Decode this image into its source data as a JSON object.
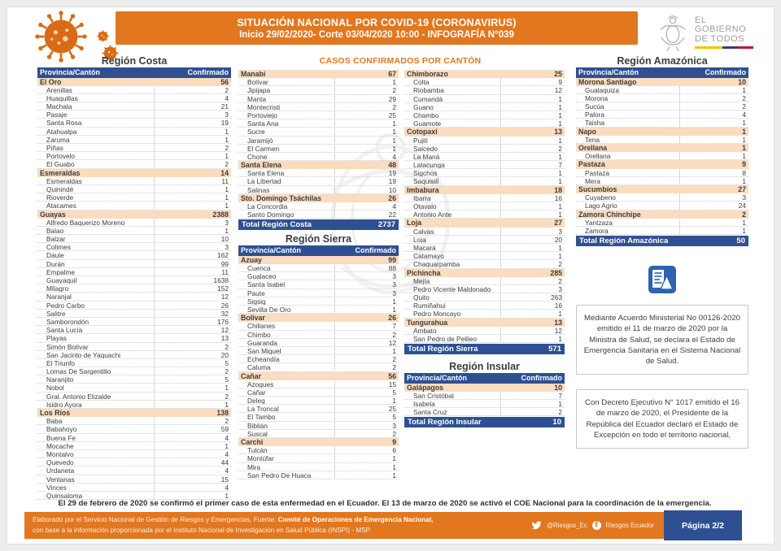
{
  "header": {
    "title_line1": "SITUACIÓN NACIONAL POR  COVID-19 (CORONAVIRUS)",
    "title_line2": "Inicio 29/02/2020- Corte 03/04/2020 10:00  - INFOGRAFÍA N°039",
    "logo_line1": "EL",
    "logo_line2": "GOBIERNO",
    "logo_line3": "DE TODOS"
  },
  "casos_header": "CASOS CONFIRMADOS POR CANTÓN",
  "col_header": {
    "province": "Provincia/Cantón",
    "confirmed": "Confirmado"
  },
  "costa": {
    "title": "Región Costa",
    "left_provinces": [
      {
        "name": "El Oro",
        "value": 56,
        "cantons": [
          [
            "Arenillas",
            2
          ],
          [
            "Huaquillas",
            4
          ],
          [
            "Machala",
            21
          ],
          [
            "Pasaje",
            3
          ],
          [
            "Santa Rosa",
            19
          ],
          [
            "Atahualpa",
            1
          ],
          [
            "Zaruma",
            1
          ],
          [
            "Piñas",
            2
          ],
          [
            "Portovelo",
            1
          ],
          [
            "El Guabo",
            2
          ]
        ]
      },
      {
        "name": "Esmeraldas",
        "value": 14,
        "cantons": [
          [
            "Esmeraldas",
            11
          ],
          [
            "Quinindé",
            1
          ],
          [
            "Rioverde",
            1
          ],
          [
            "Atacames",
            1
          ]
        ]
      },
      {
        "name": "Guayas",
        "value": 2388,
        "cantons": [
          [
            "Alfredo Baquerizo Moreno",
            3
          ],
          [
            "Balao",
            1
          ],
          [
            "Balzar",
            10
          ],
          [
            "Colimes",
            3
          ],
          [
            "Daule",
            162
          ],
          [
            "Durán",
            99
          ],
          [
            "Empalme",
            11
          ],
          [
            "Guayaquil",
            1638
          ],
          [
            "Milagro",
            152
          ],
          [
            "Naranjal",
            12
          ],
          [
            "Pedro Carbo",
            26
          ],
          [
            "Salitre",
            32
          ],
          [
            "Samborondón",
            176
          ],
          [
            "Santa Lucía",
            12
          ],
          [
            "Playas",
            13
          ],
          [
            "Simón Bolívar",
            2
          ],
          [
            "San Jacinto de Yaquachi",
            20
          ],
          [
            "El Triunfo",
            5
          ],
          [
            "Lomas De Sargentillo",
            2
          ],
          [
            "Naranjito",
            5
          ],
          [
            "Nobol",
            1
          ],
          [
            "Gral. Antonio Elizalde",
            2
          ],
          [
            "Isidro Ayora",
            1
          ]
        ]
      },
      {
        "name": "Los Ríos",
        "value": 138,
        "cantons": [
          [
            "Baba",
            2
          ],
          [
            "Babahoyo",
            59
          ],
          [
            "Buena Fe",
            4
          ],
          [
            "Mocache",
            1
          ],
          [
            "Montalvo",
            4
          ],
          [
            "Quevedo",
            44
          ],
          [
            "Urdaneta",
            4
          ],
          [
            "Ventanas",
            15
          ],
          [
            "Vinces",
            4
          ],
          [
            "Quinsaloma",
            1
          ]
        ]
      }
    ],
    "mid_provinces": [
      {
        "name": "Manabí",
        "value": 67,
        "cantons": [
          [
            "Bolívar",
            1
          ],
          [
            "Jipijapa",
            2
          ],
          [
            "Manta",
            29
          ],
          [
            "Montecristi",
            2
          ],
          [
            "Portoviejo",
            25
          ],
          [
            "Santa Ana",
            1
          ],
          [
            "Sucre",
            1
          ],
          [
            "Jaramijó",
            1
          ],
          [
            "El Carmen",
            1
          ],
          [
            "Chone",
            4
          ]
        ]
      },
      {
        "name": "Santa Elena",
        "value": 48,
        "cantons": [
          [
            "Santa Elena",
            19
          ],
          [
            "La Libertad",
            19
          ],
          [
            "Salinas",
            10
          ]
        ]
      },
      {
        "name": "Sto. Domingo  Tsáchilas",
        "value": 26,
        "cantons": [
          [
            "La Concordia",
            4
          ],
          [
            "Santo Domingo",
            22
          ]
        ]
      }
    ],
    "total_label": "Total Región Costa",
    "total_value": "2737"
  },
  "sierra": {
    "title": "Región Sierra",
    "mid_provinces": [
      {
        "name": "Azuay",
        "value": 99,
        "cantons": [
          [
            "Cuenca",
            88
          ],
          [
            "Gualaceo",
            3
          ],
          [
            "Santa Isabel",
            3
          ],
          [
            "Paute",
            3
          ],
          [
            "Sigsig",
            1
          ],
          [
            "Sevilla De Oro",
            1
          ]
        ]
      },
      {
        "name": "Bolívar",
        "value": 26,
        "cantons": [
          [
            "Chillanes",
            7
          ],
          [
            "Chimbo",
            2
          ],
          [
            "Guaranda",
            12
          ],
          [
            "San Miguel",
            1
          ],
          [
            "Echeandía",
            2
          ],
          [
            "Caluma",
            2
          ]
        ]
      },
      {
        "name": "Cañar",
        "value": 56,
        "cantons": [
          [
            "Azogues",
            15
          ],
          [
            "Cañar",
            5
          ],
          [
            "Deleg",
            1
          ],
          [
            "La Troncal",
            25
          ],
          [
            "El Tambo",
            5
          ],
          [
            "Biblián",
            3
          ],
          [
            "Suscal",
            2
          ]
        ]
      },
      {
        "name": "Carchi",
        "value": 9,
        "cantons": [
          [
            "Tulcán",
            6
          ],
          [
            "Montúfar",
            1
          ],
          [
            "Mira",
            1
          ],
          [
            "San Pedro De Huaca",
            1
          ]
        ]
      }
    ],
    "right_provinces": [
      {
        "name": "Chimborazo",
        "value": 25,
        "cantons": [
          [
            "Colta",
            9
          ],
          [
            "Riobamba",
            12
          ],
          [
            "Cumandá",
            1
          ],
          [
            "Guano",
            1
          ],
          [
            "Chambo",
            1
          ],
          [
            "Guamote",
            1
          ]
        ]
      },
      {
        "name": "Cotopaxi",
        "value": 13,
        "cantons": [
          [
            "Pujilí",
            1
          ],
          [
            "Salcedo",
            2
          ],
          [
            "La Maná",
            1
          ],
          [
            "Latacunga",
            7
          ],
          [
            "Sigchos",
            1
          ],
          [
            "Saquisilí",
            1
          ]
        ]
      },
      {
        "name": "Imbabura",
        "value": 18,
        "cantons": [
          [
            "Ibarra",
            16
          ],
          [
            "Otavalo",
            1
          ],
          [
            "Antonio Ante",
            1
          ]
        ]
      },
      {
        "name": "Loja",
        "value": 27,
        "cantons": [
          [
            "Calvas",
            3
          ],
          [
            "Loja",
            20
          ],
          [
            "Macará",
            1
          ],
          [
            "Catamayo",
            1
          ],
          [
            "Chaquarpamba",
            2
          ]
        ]
      },
      {
        "name": "Pichincha",
        "value": 285,
        "cantons": [
          [
            "Mejía",
            2
          ],
          [
            "Pedro Vicente Maldonado",
            3
          ],
          [
            "Quito",
            263
          ],
          [
            "Rumiñahui",
            16
          ],
          [
            "Pedro Moncayo",
            1
          ]
        ]
      },
      {
        "name": "Tungurahua",
        "value": 13,
        "cantons": [
          [
            "Ambato",
            12
          ],
          [
            "San Pedro de Pelileo",
            1
          ]
        ]
      }
    ],
    "total_label": "Total Región Sierra",
    "total_value": "571"
  },
  "insular": {
    "title": "Región Insular",
    "provinces": [
      {
        "name": "Galápagos",
        "value": 10,
        "cantons": [
          [
            "San Cristóbal",
            7
          ],
          [
            "Isabela",
            1
          ],
          [
            "Santa Cruz",
            2
          ]
        ]
      }
    ],
    "total_label": "Total Región Insular",
    "total_value": "10"
  },
  "amazonica": {
    "title": "Región Amazónica",
    "provinces": [
      {
        "name": "Morona Santiago",
        "value": 10,
        "cantons": [
          [
            "Gualaquiza",
            1
          ],
          [
            "Morona",
            2
          ],
          [
            "Sucúa",
            2
          ],
          [
            "Palora",
            4
          ],
          [
            "Taisha",
            1
          ]
        ]
      },
      {
        "name": "Napo",
        "value": 1,
        "cantons": [
          [
            "Tena",
            1
          ]
        ]
      },
      {
        "name": "Orellana",
        "value": 1,
        "cantons": [
          [
            "Orellana",
            1
          ]
        ]
      },
      {
        "name": "Pastaza",
        "value": 9,
        "cantons": [
          [
            "Pastaza",
            8
          ],
          [
            "Mera",
            1
          ]
        ]
      },
      {
        "name": "Sucumbíos",
        "value": 27,
        "cantons": [
          [
            "Cuyabeno",
            3
          ],
          [
            "Lago Agrio",
            24
          ]
        ]
      },
      {
        "name": "Zamora Chinchipe",
        "value": 2,
        "cantons": [
          [
            "Yantzaza",
            1
          ],
          [
            "Zamora",
            1
          ]
        ]
      }
    ],
    "total_label": "Total Región Amazónica",
    "total_value": "50"
  },
  "notes": {
    "note1": "Mediante Acuerdo Ministerial No 00126-2020 emitido el 11 de marzo de 2020 por la Ministra de Salud, se declara el Estado de Emergencia Sanitaria en el Sistema Nacional de Salud.",
    "note2": "Con Decreto Ejecutivo N° 1017 emitido el 16 de marzo de 2020, el Presidente de la República del Ecuador declaró el Estado de Excepción en todo el territorio nacional,"
  },
  "footer": {
    "first_case": "El 29 de febrero de 2020 se confirmó el primer caso de esta enfermedad en el Ecuador. El 13 de marzo de 2020 se activó el COE Nacional para la coordinación de la emergencia.",
    "credits_prefix": "Elaborado por el Servicio Nacional de Gestión de Riesgos y Emergencias, Fuente: ",
    "credits_bold": "Comité de Operaciones de Emergencia Nacional,",
    "credits_line2": "con base a la información proporcionada por el Instituto Nacional de Investigación en Salud Pública (INSPI) - MSP",
    "twitter_handle": "@Riesgos_Ec",
    "facebook_handle": "Riesgos Ecuador",
    "page_label": "Página 2/2"
  },
  "colors": {
    "accent_orange": "#E2771F",
    "header_blue": "#2E5093",
    "row_peach": "#FADCBF"
  }
}
